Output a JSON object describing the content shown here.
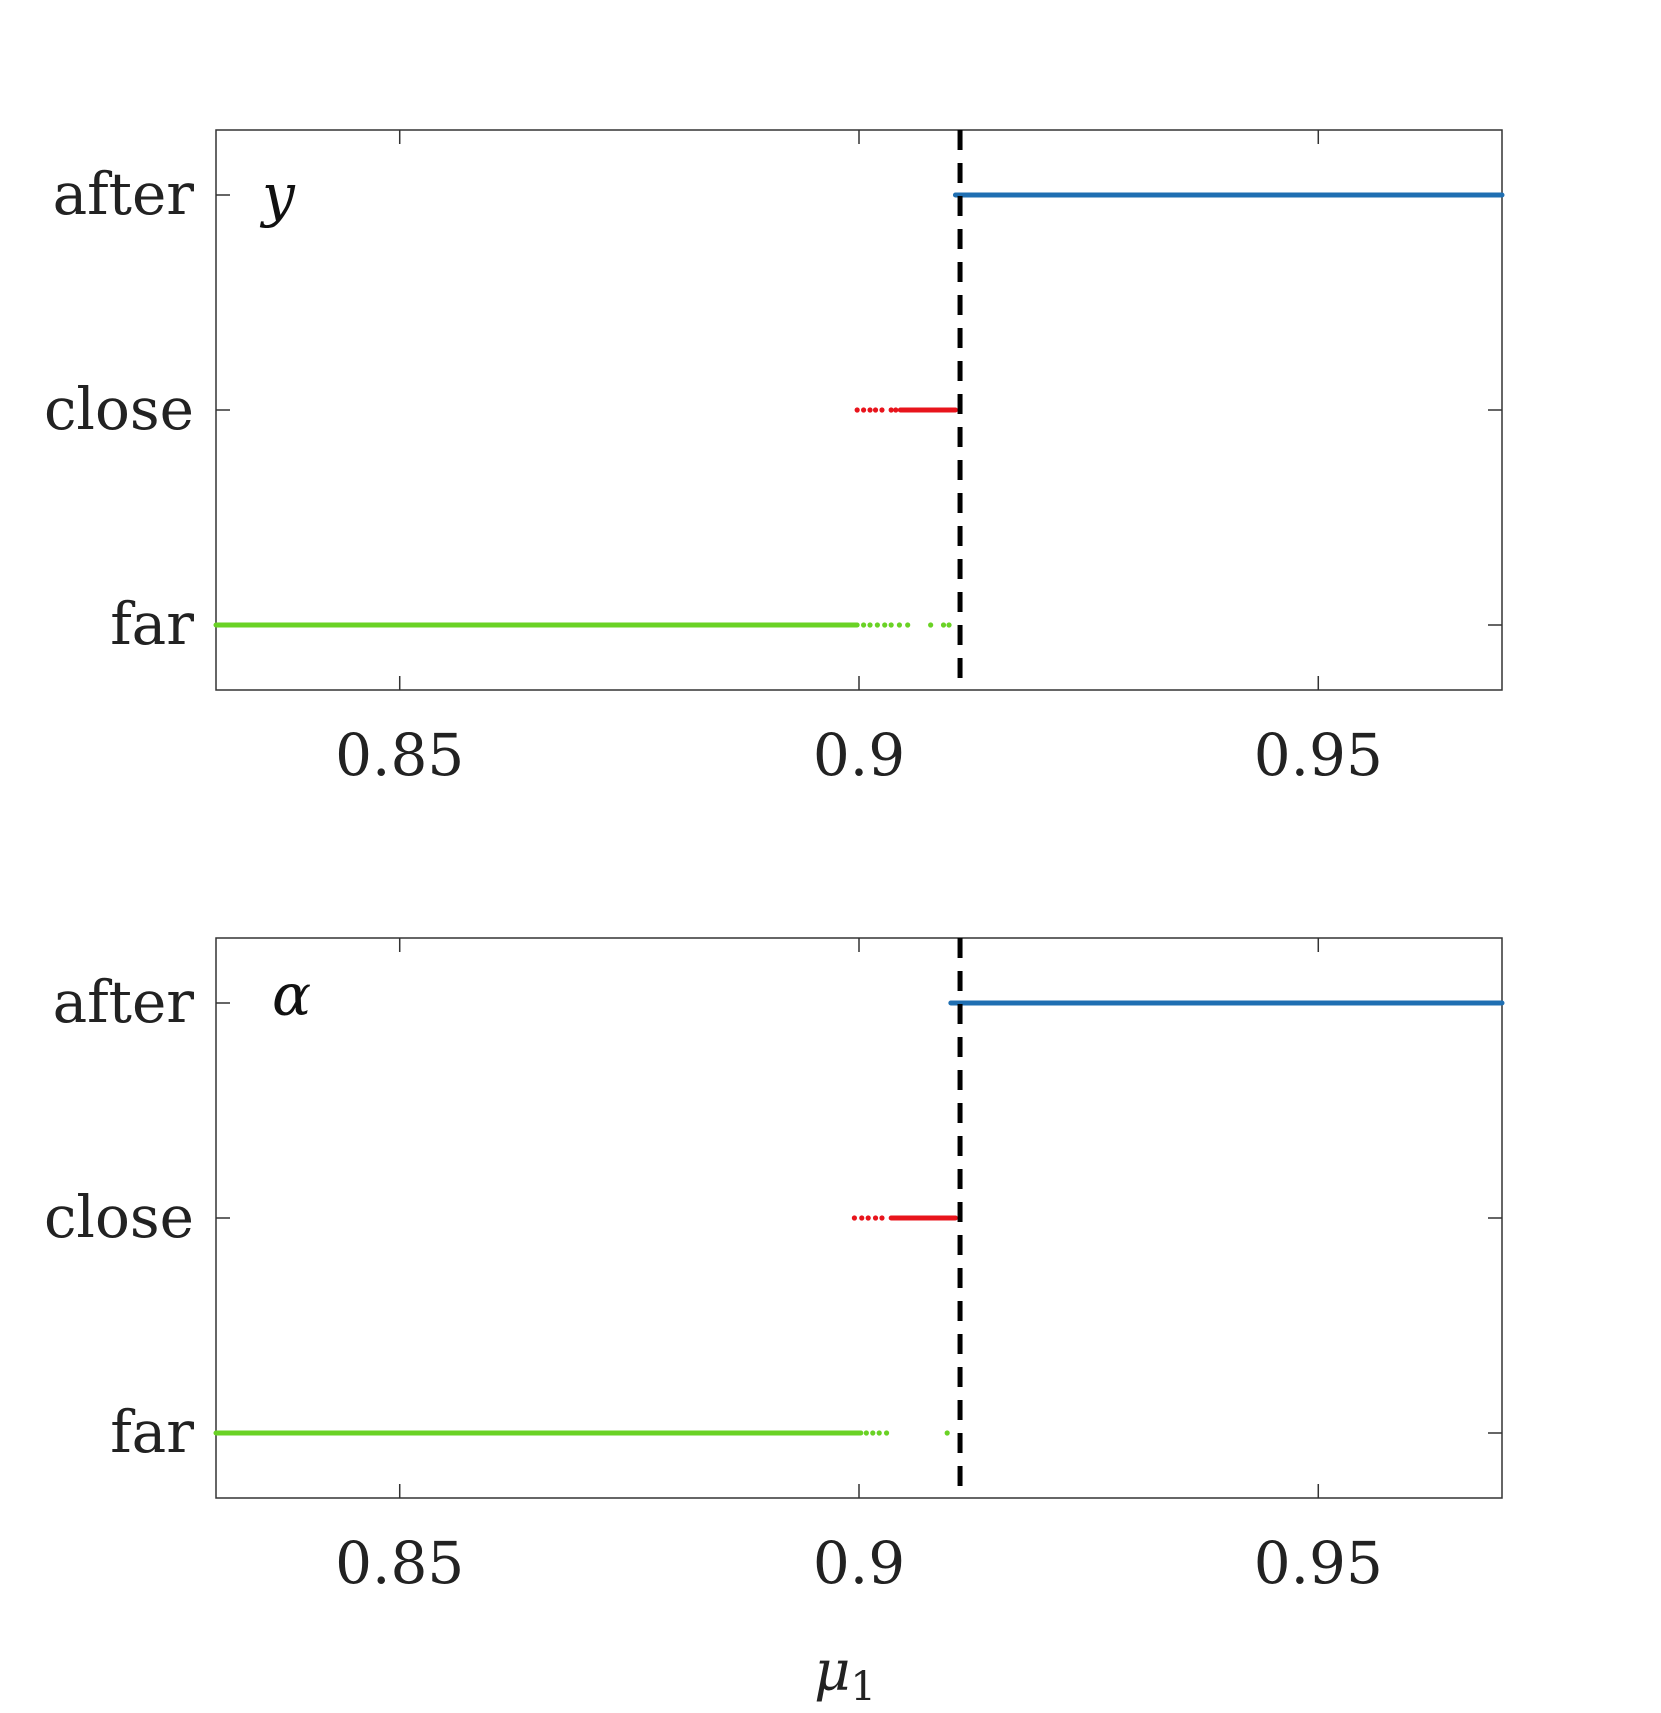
{
  "chart_data": [
    {
      "type": "scatter",
      "panel_label": "y",
      "xlim": [
        0.83,
        0.97
      ],
      "x_ticks": [
        0.85,
        0.9,
        0.95
      ],
      "x_tick_labels": [
        "0.85",
        "0.9",
        "0.95"
      ],
      "y_categories": [
        "far",
        "close",
        "after"
      ],
      "grid": false,
      "vline_x": 0.911,
      "series": [
        {
          "category": "after",
          "color": "#1f6fb2",
          "segments": [
            [
              0.9105,
              0.97
            ]
          ],
          "points": []
        },
        {
          "category": "close",
          "color": "#e8141c",
          "segments": [
            [
              0.9045,
              0.9105
            ]
          ],
          "points": [
            0.8998,
            0.9005,
            0.9012,
            0.9018,
            0.9025,
            0.9035,
            0.904
          ]
        },
        {
          "category": "far",
          "color": "#6ad225",
          "segments": [
            [
              0.83,
              0.8998
            ]
          ],
          "points": [
            0.9005,
            0.9012,
            0.902,
            0.9028,
            0.9035,
            0.9044,
            0.9053,
            0.9078,
            0.9092,
            0.9098
          ]
        }
      ]
    },
    {
      "type": "scatter",
      "panel_label": "α",
      "xlim": [
        0.83,
        0.97
      ],
      "x_ticks": [
        0.85,
        0.9,
        0.95
      ],
      "x_tick_labels": [
        "0.85",
        "0.9",
        "0.95"
      ],
      "y_categories": [
        "far",
        "close",
        "after"
      ],
      "grid": false,
      "vline_x": 0.911,
      "xlabel": "μ",
      "xlabel_subscript": "1",
      "series": [
        {
          "category": "after",
          "color": "#1f6fb2",
          "segments": [
            [
              0.91,
              0.97
            ]
          ],
          "points": []
        },
        {
          "category": "close",
          "color": "#e8141c",
          "segments": [
            [
              0.9035,
              0.9105
            ]
          ],
          "points": [
            0.8995,
            0.9003,
            0.901,
            0.9018,
            0.9025
          ]
        },
        {
          "category": "far",
          "color": "#6ad225",
          "segments": [
            [
              0.83,
              0.9002
            ]
          ],
          "points": [
            0.9008,
            0.9015,
            0.9022,
            0.903,
            0.9096
          ]
        }
      ]
    }
  ]
}
